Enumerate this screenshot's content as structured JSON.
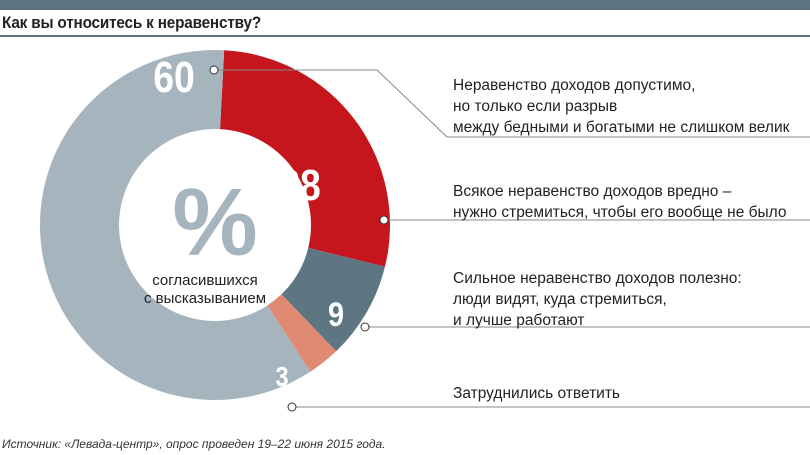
{
  "title": "Как вы относитесь к неравенству?",
  "source": "Источник: «Левада-центр», опрос проведен 19–22 июня 2015 года.",
  "chart_data": {
    "type": "pie",
    "center_symbol": "%",
    "center_label_1": "согласившихся",
    "center_label_2": "с высказыванием",
    "slices": [
      {
        "value": 28,
        "label": "28",
        "color": "#c4161c",
        "text": [
          "Всякое неравенство доходов вредно –",
          "нужно стремиться, чтобы его вообще не было"
        ]
      },
      {
        "value": 9,
        "label": "9",
        "color": "#5e7582",
        "text": [
          "Сильное неравенство доходов полезно:",
          "люди видят, куда стремиться,",
          "и лучше работают"
        ]
      },
      {
        "value": 3,
        "label": "3",
        "color": "#e08a72",
        "text": [
          "Затруднились  ответить"
        ]
      },
      {
        "value": 60,
        "label": "60",
        "color": "#a6b4bd",
        "text": [
          "Неравенство доходов допустимо,",
          "но только если разрыв",
          "между бедными и богатыми не слишком велик"
        ]
      }
    ]
  }
}
